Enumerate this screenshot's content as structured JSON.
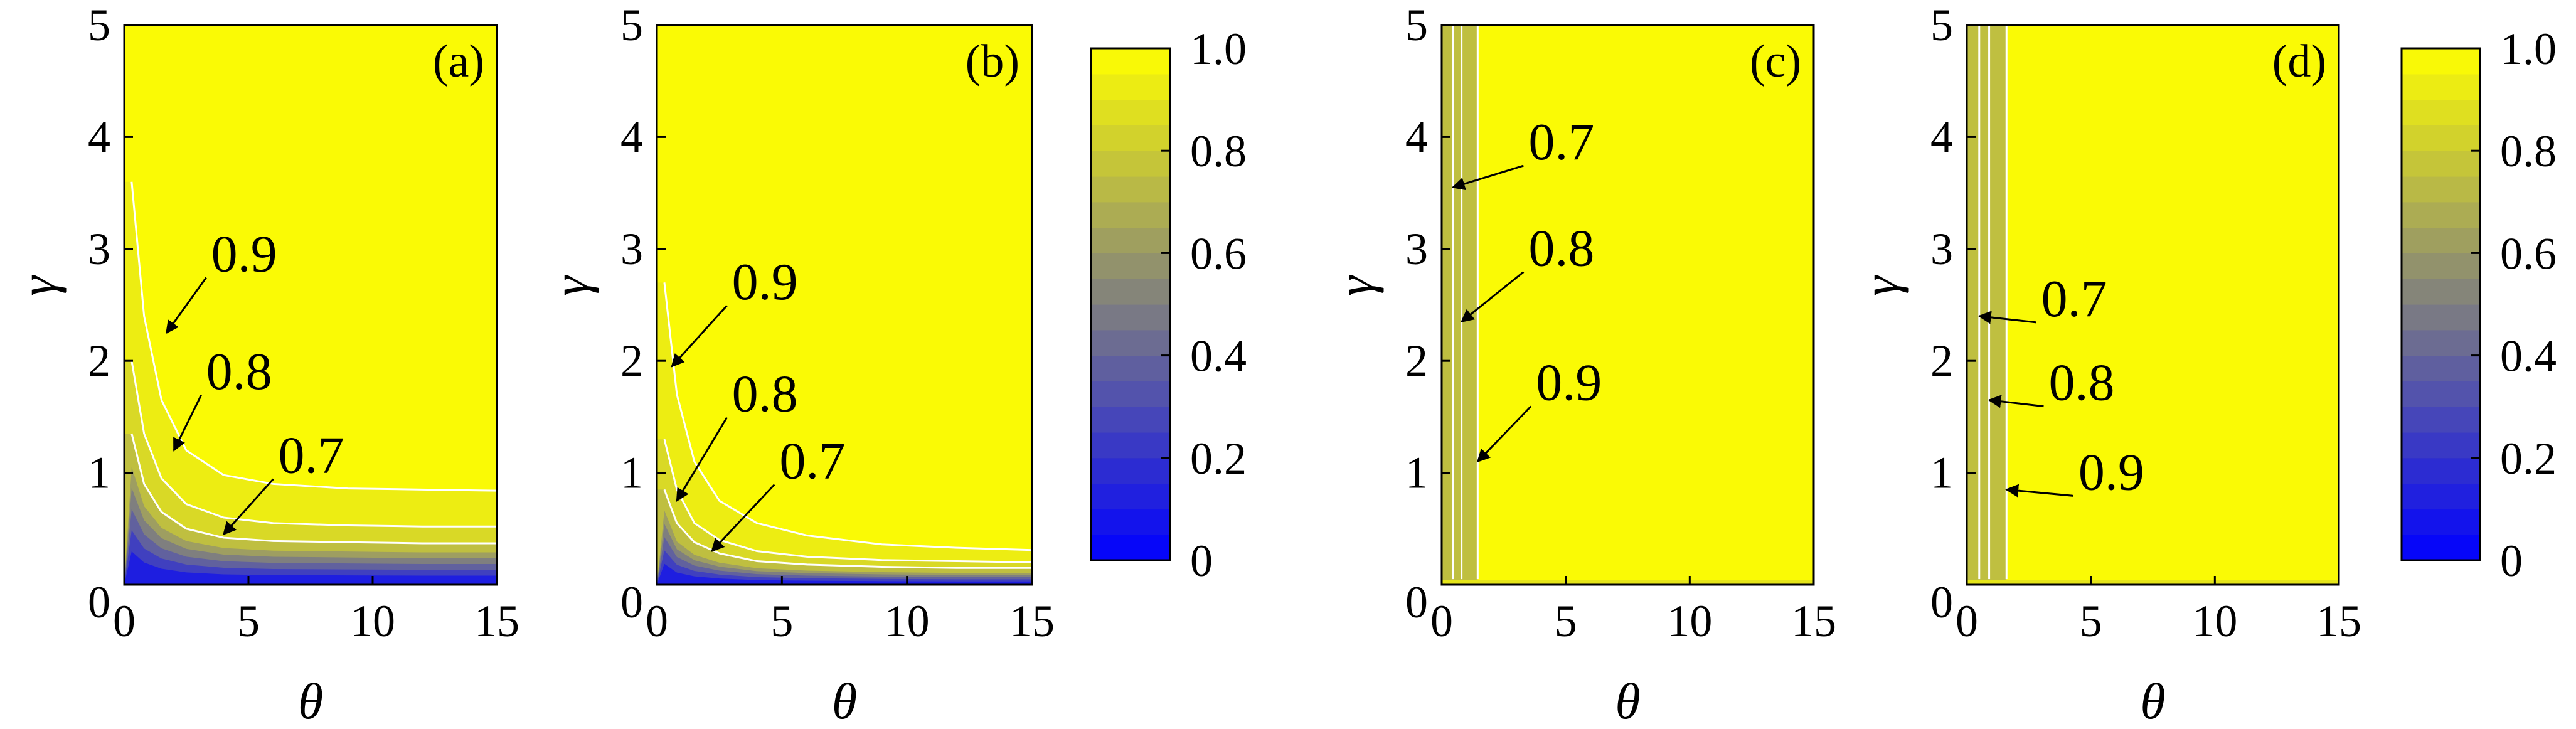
{
  "chart_data": [
    {
      "type": "contour",
      "panel": "(a)",
      "xlabel": "θ",
      "ylabel": "γ",
      "xlim": [
        0,
        15
      ],
      "ylim": [
        0,
        5
      ],
      "xticks": [
        "0",
        "5",
        "10",
        "15"
      ],
      "yticks": [
        "0",
        "1",
        "2",
        "3",
        "4",
        "5"
      ],
      "contours": [
        {
          "label": "0.9",
          "x": [
            0.3,
            0.8,
            1.5,
            2.5,
            4,
            6,
            9,
            12,
            15
          ],
          "y": [
            3.6,
            2.4,
            1.65,
            1.2,
            0.98,
            0.9,
            0.86,
            0.85,
            0.84
          ]
        },
        {
          "label": "0.8",
          "x": [
            0.3,
            0.8,
            1.5,
            2.5,
            4,
            6,
            9,
            12,
            15
          ],
          "y": [
            2.0,
            1.35,
            0.95,
            0.72,
            0.6,
            0.55,
            0.53,
            0.52,
            0.52
          ]
        },
        {
          "label": "0.7",
          "x": [
            0.3,
            0.8,
            1.5,
            2.5,
            4,
            6,
            9,
            12,
            15
          ],
          "y": [
            1.35,
            0.9,
            0.65,
            0.5,
            0.42,
            0.39,
            0.38,
            0.37,
            0.37
          ]
        }
      ],
      "annotations": [
        {
          "text": "0.9",
          "text_at": [
            3.5,
            2.8
          ],
          "arrow_to": [
            1.7,
            2.25
          ]
        },
        {
          "text": "0.8",
          "text_at": [
            3.3,
            1.75
          ],
          "arrow_to": [
            2.0,
            1.2
          ]
        },
        {
          "text": "0.7",
          "text_at": [
            6.2,
            1.0
          ],
          "arrow_to": [
            4.0,
            0.45
          ]
        }
      ]
    },
    {
      "type": "contour",
      "panel": "(b)",
      "xlabel": "θ",
      "ylabel": "γ",
      "xlim": [
        0,
        15
      ],
      "ylim": [
        0,
        5
      ],
      "xticks": [
        "0",
        "5",
        "10",
        "15"
      ],
      "yticks": [
        "0",
        "1",
        "2",
        "3",
        "4",
        "5"
      ],
      "contours": [
        {
          "label": "0.9",
          "x": [
            0.3,
            0.8,
            1.5,
            2.5,
            4,
            6,
            9,
            12,
            15
          ],
          "y": [
            2.7,
            1.7,
            1.1,
            0.75,
            0.55,
            0.44,
            0.36,
            0.33,
            0.31
          ]
        },
        {
          "label": "0.8",
          "x": [
            0.3,
            0.8,
            1.5,
            2.5,
            4,
            6,
            9,
            12,
            15
          ],
          "y": [
            1.3,
            0.85,
            0.55,
            0.4,
            0.3,
            0.25,
            0.22,
            0.21,
            0.2
          ]
        },
        {
          "label": "0.7",
          "x": [
            0.3,
            0.8,
            1.5,
            2.5,
            4,
            6,
            9,
            12,
            15
          ],
          "y": [
            0.85,
            0.55,
            0.38,
            0.28,
            0.21,
            0.18,
            0.16,
            0.15,
            0.15
          ]
        }
      ],
      "annotations": [
        {
          "text": "0.9",
          "text_at": [
            3.0,
            2.55
          ],
          "arrow_to": [
            0.6,
            1.95
          ]
        },
        {
          "text": "0.8",
          "text_at": [
            3.0,
            1.55
          ],
          "arrow_to": [
            0.8,
            0.75
          ]
        },
        {
          "text": "0.7",
          "text_at": [
            4.9,
            0.95
          ],
          "arrow_to": [
            2.2,
            0.3
          ]
        }
      ]
    },
    {
      "type": "contour",
      "panel": "(c)",
      "xlabel": "θ",
      "ylabel": "γ",
      "xlim": [
        0,
        15
      ],
      "ylim": [
        0,
        5
      ],
      "xticks": [
        "0",
        "5",
        "10",
        "15"
      ],
      "yticks": [
        "0",
        "1",
        "2",
        "3",
        "4",
        "5"
      ],
      "contours": [
        {
          "label": "0.7",
          "x": [
            0.45,
            0.45
          ],
          "y": [
            0.05,
            5
          ]
        },
        {
          "label": "0.8",
          "x": [
            0.8,
            0.8
          ],
          "y": [
            0.05,
            5
          ]
        },
        {
          "label": "0.9",
          "x": [
            1.45,
            1.45
          ],
          "y": [
            0.05,
            5
          ]
        }
      ],
      "annotations": [
        {
          "text": "0.7",
          "text_at": [
            3.5,
            3.8
          ],
          "arrow_to": [
            0.45,
            3.55
          ]
        },
        {
          "text": "0.8",
          "text_at": [
            3.5,
            2.85
          ],
          "arrow_to": [
            0.8,
            2.35
          ]
        },
        {
          "text": "0.9",
          "text_at": [
            3.8,
            1.65
          ],
          "arrow_to": [
            1.45,
            1.1
          ]
        }
      ]
    },
    {
      "type": "contour",
      "panel": "(d)",
      "xlabel": "θ",
      "ylabel": "γ",
      "xlim": [
        0,
        15
      ],
      "ylim": [
        0,
        5
      ],
      "xticks": [
        "0",
        "5",
        "10",
        "15"
      ],
      "yticks": [
        "0",
        "1",
        "2",
        "3",
        "4",
        "5"
      ],
      "contours": [
        {
          "label": "0.7",
          "x": [
            0.5,
            0.5
          ],
          "y": [
            0.05,
            5
          ]
        },
        {
          "label": "0.8",
          "x": [
            0.9,
            0.9
          ],
          "y": [
            0.05,
            5
          ]
        },
        {
          "label": "0.9",
          "x": [
            1.6,
            1.6
          ],
          "y": [
            0.05,
            5
          ]
        }
      ],
      "annotations": [
        {
          "text": "0.7",
          "text_at": [
            3.0,
            2.4
          ],
          "arrow_to": [
            0.5,
            2.4
          ]
        },
        {
          "text": "0.8",
          "text_at": [
            3.3,
            1.65
          ],
          "arrow_to": [
            0.9,
            1.65
          ]
        },
        {
          "text": "0.9",
          "text_at": [
            4.5,
            0.85
          ],
          "arrow_to": [
            1.6,
            0.85
          ]
        }
      ]
    }
  ],
  "colorbars": [
    {
      "name": "colorbar-left",
      "range": [
        0,
        1
      ],
      "ticks": [
        "0",
        "0.2",
        "0.4",
        "0.6",
        "0.8",
        "1.0"
      ],
      "levels": 20,
      "colors": [
        "#0000ff",
        "#7f7f7f",
        "#ffff00"
      ]
    },
    {
      "name": "colorbar-right",
      "range": [
        0,
        1
      ],
      "ticks": [
        "0",
        "0.2",
        "0.4",
        "0.6",
        "0.8",
        "1.0"
      ],
      "levels": 20,
      "colors": [
        "#0000ff",
        "#7f7f7f",
        "#ffff00"
      ]
    }
  ]
}
